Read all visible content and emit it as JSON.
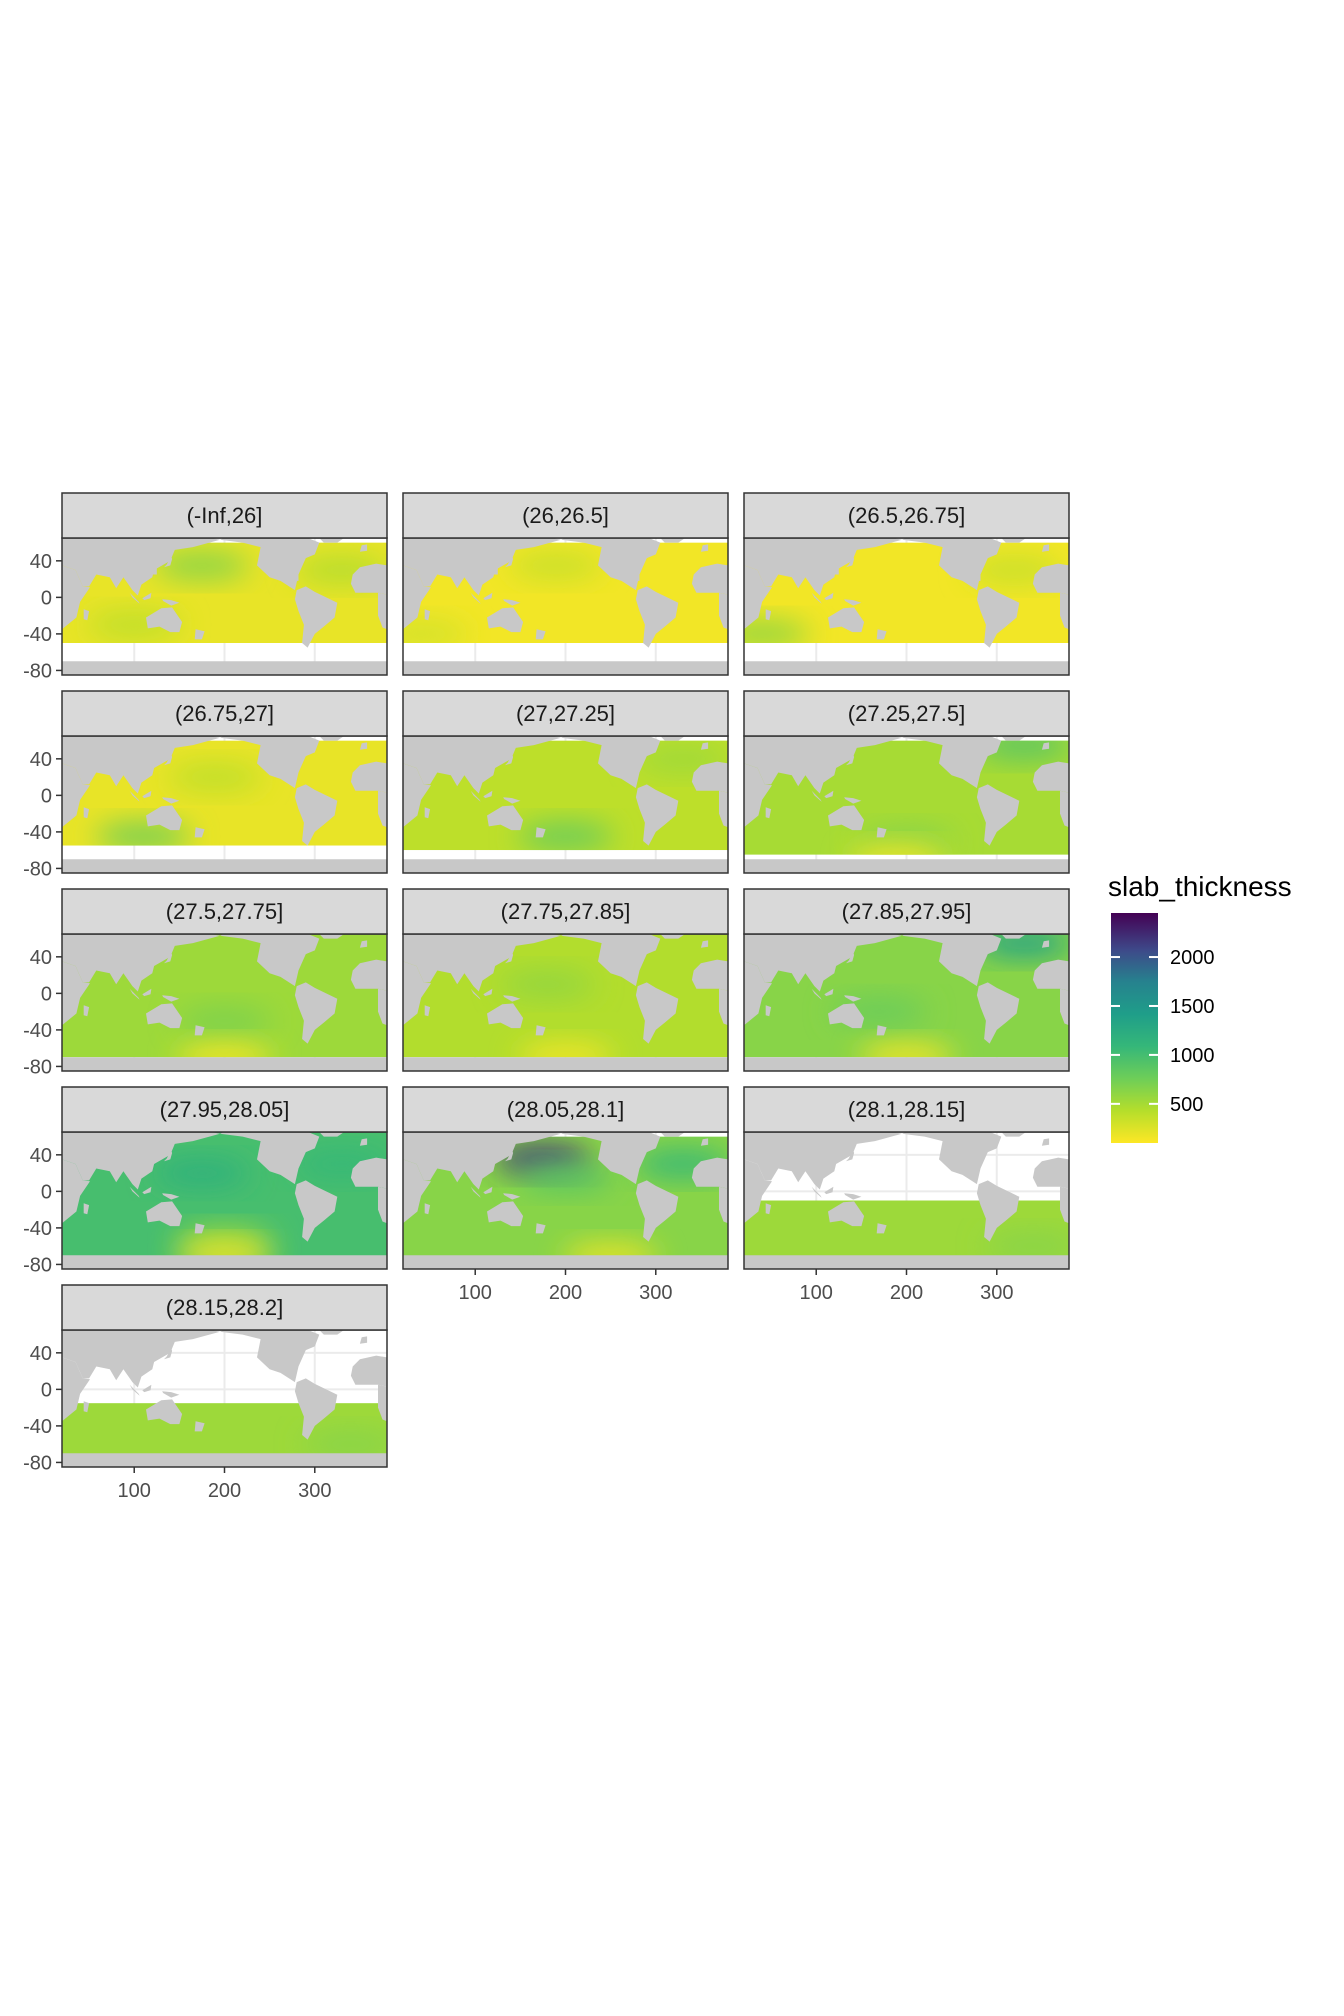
{
  "chart_data": {
    "type": "heatmap",
    "description_kind": "faceted map panels of slab thickness by density bin",
    "facets": [
      {
        "label": "(-Inf,26]",
        "lat_range": [
          -50,
          60
        ],
        "dominant_value": 200,
        "patches": [
          {
            "value": 650,
            "lon": 175,
            "lat": 35
          },
          {
            "value": 400,
            "lon": 100,
            "lat": -30
          },
          {
            "value": 450,
            "lon": 330,
            "lat": 30
          }
        ]
      },
      {
        "label": "(26,26.5]",
        "lat_range": [
          -50,
          60
        ],
        "dominant_value": 150,
        "patches": [
          {
            "value": 350,
            "lon": 190,
            "lat": 35
          },
          {
            "value": 300,
            "lon": 40,
            "lat": -40
          }
        ]
      },
      {
        "label": "(26.5,26.75]",
        "lat_range": [
          -50,
          60
        ],
        "dominant_value": 150,
        "patches": [
          {
            "value": 600,
            "lon": 40,
            "lat": -40
          },
          {
            "value": 350,
            "lon": 320,
            "lat": 30
          }
        ]
      },
      {
        "label": "(26.75,27]",
        "lat_range": [
          -55,
          60
        ],
        "dominant_value": 200,
        "patches": [
          {
            "value": 750,
            "lon": 110,
            "lat": -45
          },
          {
            "value": 400,
            "lon": 190,
            "lat": 20
          }
        ]
      },
      {
        "label": "(27,27.25]",
        "lat_range": [
          -60,
          60
        ],
        "dominant_value": 400,
        "patches": [
          {
            "value": 800,
            "lon": 200,
            "lat": -45
          },
          {
            "value": 550,
            "lon": 330,
            "lat": 40
          }
        ]
      },
      {
        "label": "(27.25,27.5]",
        "lat_range": [
          -65,
          60
        ],
        "dominant_value": 500,
        "patches": [
          {
            "value": 650,
            "lon": 200,
            "lat": -50
          },
          {
            "value": 150,
            "lon": 190,
            "lat": -70
          },
          {
            "value": 900,
            "lon": 330,
            "lat": 55
          }
        ]
      },
      {
        "label": "(27.5,27.75]",
        "lat_range": [
          -70,
          65
        ],
        "dominant_value": 550,
        "patches": [
          {
            "value": 700,
            "lon": 200,
            "lat": -30
          },
          {
            "value": 150,
            "lon": 200,
            "lat": -70
          }
        ]
      },
      {
        "label": "(27.75,27.85]",
        "lat_range": [
          -70,
          65
        ],
        "dominant_value": 450,
        "patches": [
          {
            "value": 600,
            "lon": 180,
            "lat": 10
          },
          {
            "value": 150,
            "lon": 200,
            "lat": -70
          }
        ]
      },
      {
        "label": "(27.85,27.95]",
        "lat_range": [
          -70,
          65
        ],
        "dominant_value": 650,
        "patches": [
          {
            "value": 1400,
            "lon": 330,
            "lat": 55
          },
          {
            "value": 800,
            "lon": 170,
            "lat": -20
          },
          {
            "value": 150,
            "lon": 200,
            "lat": -70
          }
        ]
      },
      {
        "label": "(27.95,28.05]",
        "lat_range": [
          -75,
          65
        ],
        "dominant_value": 1000,
        "patches": [
          {
            "value": 1200,
            "lon": 175,
            "lat": 20
          },
          {
            "value": 1100,
            "lon": 330,
            "lat": 30
          },
          {
            "value": 500,
            "lon": 200,
            "lat": -55
          },
          {
            "value": 150,
            "lon": 200,
            "lat": -72
          }
        ]
      },
      {
        "label": "(28.05,28.1]",
        "lat_range": [
          -75,
          60
        ],
        "dominant_value": 650,
        "patches": [
          {
            "value": 2200,
            "lon": 175,
            "lat": 35
          },
          {
            "value": 1100,
            "lon": 330,
            "lat": 30
          },
          {
            "value": 900,
            "lon": 200,
            "lat": 15
          },
          {
            "value": 200,
            "lon": 250,
            "lat": -72
          }
        ]
      },
      {
        "label": "(28.1,28.15]",
        "lat_range": [
          -75,
          -10
        ],
        "dominant_value": 550,
        "patches": [
          {
            "value": 650,
            "lon": 340,
            "lat": -60
          }
        ]
      },
      {
        "label": "(28.15,28.2]",
        "lat_range": [
          -75,
          -15
        ],
        "dominant_value": 550,
        "patches": [
          {
            "value": 650,
            "lon": 340,
            "lat": -60
          }
        ]
      }
    ],
    "xlim": [
      20,
      380
    ],
    "ylim": [
      -85,
      65
    ],
    "x_ticks": [
      "100",
      "200",
      "300"
    ],
    "x_tick_values": [
      100,
      200,
      300
    ],
    "y_ticks": [
      "40",
      "0",
      "-40",
      "-80"
    ],
    "y_tick_values": [
      40,
      0,
      -40,
      -80
    ],
    "xlabel": "",
    "ylabel": "",
    "legend": {
      "title": "slab_thickness",
      "placement": "right",
      "limits": [
        100,
        2450
      ],
      "breaks": [
        "2000",
        "1500",
        "1000",
        "500"
      ],
      "break_values": [
        2000,
        1500,
        1000,
        500
      ],
      "palette": "viridis (reversed)"
    },
    "grid": true,
    "colors": {
      "land": "#c8c8c8",
      "strip_background": "#d9d9d9",
      "gridline": "#ebebeb",
      "panel_border": "#333333"
    }
  }
}
